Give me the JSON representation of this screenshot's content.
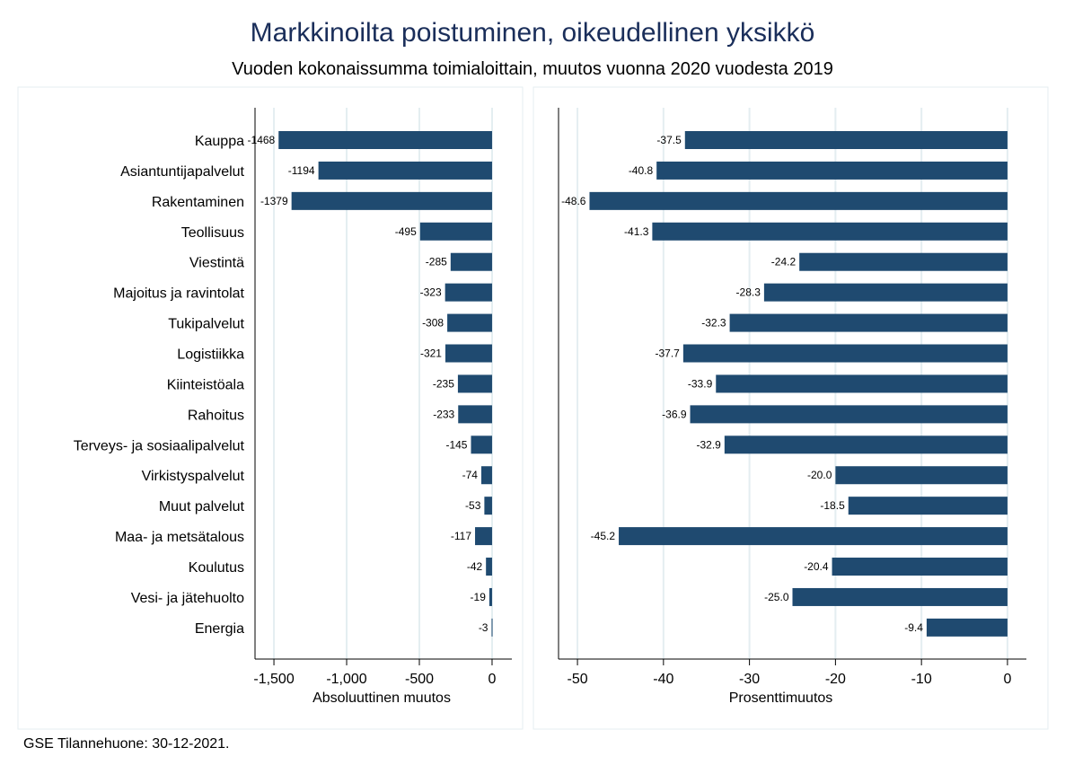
{
  "chart_data": [
    {
      "type": "bar",
      "orientation": "horizontal",
      "title": "Markkinoilta poistuminen, oikeudellinen yksikkö",
      "subtitle": "Vuoden kokonaissumma toimialoittain, muutos vuonna 2020 vuodesta 2019",
      "xlabel": "Absoluuttinen muutos",
      "categories": [
        "Kauppa",
        "Asiantuntijapalvelut",
        "Rakentaminen",
        "Teollisuus",
        "Viestintä",
        "Majoitus ja ravintolat",
        "Tukipalvelut",
        "Logistiikka",
        "Kiinteistöala",
        "Rahoitus",
        "Terveys- ja sosiaalipalvelut",
        "Virkistyspalvelut",
        "Muut palvelut",
        "Maa- ja metsätalous",
        "Koulutus",
        "Vesi- ja jätehuolto",
        "Energia"
      ],
      "values": [
        -1468,
        -1194,
        -1379,
        -495,
        -285,
        -323,
        -308,
        -321,
        -235,
        -233,
        -145,
        -74,
        -53,
        -117,
        -42,
        -19,
        -3
      ],
      "labels": [
        "-1468",
        "-1194",
        "-1379",
        "-495",
        "-285",
        "-323",
        "-308",
        "-321",
        "-235",
        "-233",
        "-145",
        "-74",
        "-53",
        "-117",
        "-42",
        "-19",
        "-3"
      ],
      "xticks": [
        -1500,
        -1000,
        -500,
        0
      ],
      "xtick_labels": [
        "-1,500",
        "-1,000",
        "-500",
        "0"
      ],
      "xlim": [
        -1630,
        136
      ],
      "grid": true,
      "color": "#1f4a70"
    },
    {
      "type": "bar",
      "orientation": "horizontal",
      "xlabel": "Prosenttimuutos",
      "values": [
        -37.5,
        -40.8,
        -48.6,
        -41.3,
        -24.2,
        -28.3,
        -32.3,
        -37.7,
        -33.9,
        -36.9,
        -32.9,
        -20.0,
        -18.5,
        -45.2,
        -20.4,
        -25.0,
        -9.4
      ],
      "labels": [
        "-37.5",
        "-40.8",
        "-48.6",
        "-41.3",
        "-24.2",
        "-28.3",
        "-32.3",
        "-37.7",
        "-33.9",
        "-36.9",
        "-32.9",
        "-20.0",
        "-18.5",
        "-45.2",
        "-20.4",
        "-25.0",
        "-9.4"
      ],
      "xticks": [
        -50,
        -40,
        -30,
        -20,
        -10,
        0
      ],
      "xtick_labels": [
        "-50",
        "-40",
        "-30",
        "-20",
        "-10",
        "0"
      ],
      "xlim": [
        -52.2,
        2.2
      ],
      "grid": true,
      "color": "#1f4a70"
    }
  ],
  "note": "GSE Tilannehuone: 30-12-2021."
}
